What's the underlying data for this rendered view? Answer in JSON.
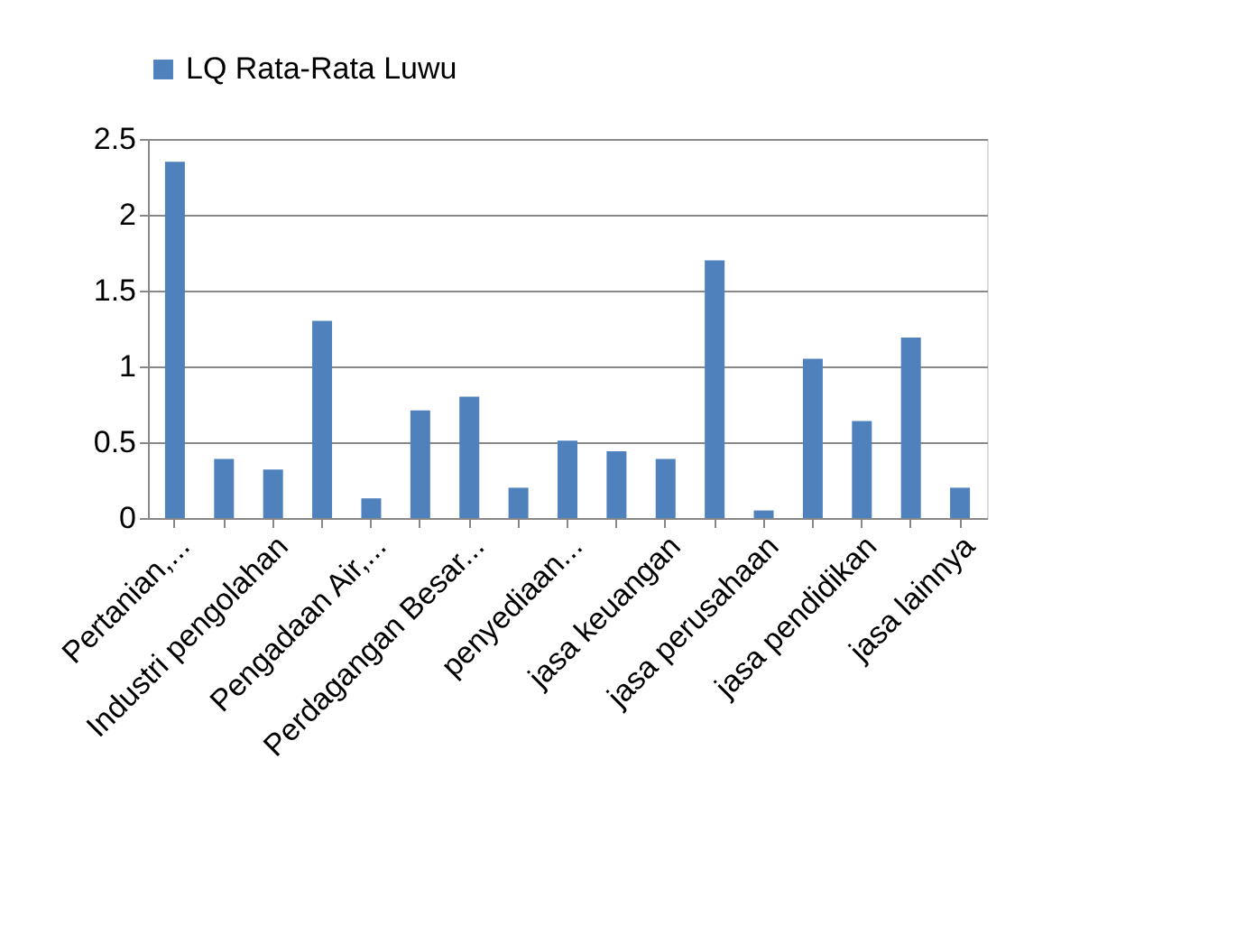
{
  "chart_data": {
    "type": "bar",
    "categories": [
      "Pertanian,...",
      null,
      "Industri pengolahan",
      null,
      "Pengadaan Air,...",
      null,
      "Perdagangan Besar...",
      null,
      "penyediaan...",
      null,
      "jasa keuangan",
      null,
      "jasa perusahaan",
      null,
      "jasa pendidikan",
      null,
      "jasa lainnya"
    ],
    "series": [
      {
        "name": "LQ Rata-Rata Luwu",
        "color": "#4f81bd",
        "values": [
          2.35,
          0.39,
          0.32,
          1.3,
          0.13,
          0.71,
          0.8,
          0.2,
          0.51,
          0.44,
          0.39,
          1.7,
          0.05,
          1.05,
          0.64,
          1.19,
          0.2
        ]
      }
    ],
    "ylim": [
      0,
      2.5
    ],
    "yticks": [
      0,
      0.5,
      1,
      1.5,
      2,
      2.5
    ],
    "grid": "y",
    "legend": "top"
  }
}
